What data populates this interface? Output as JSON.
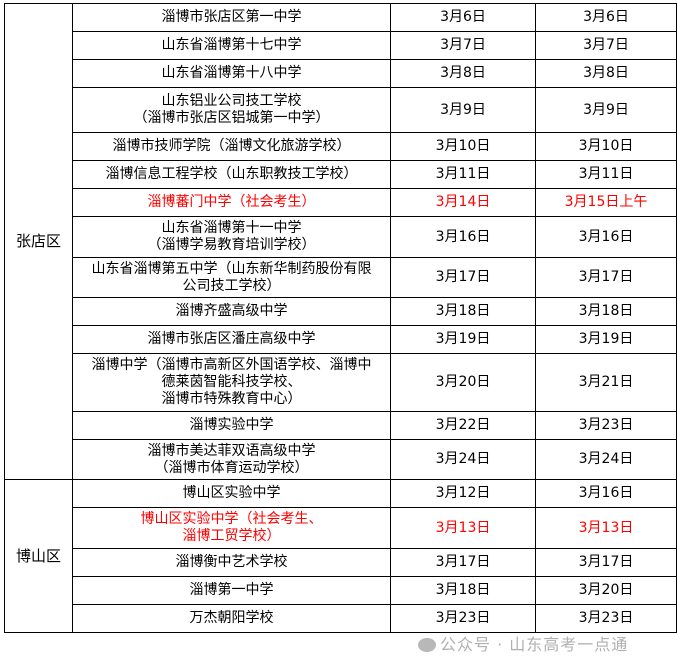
{
  "table": {
    "districts": [
      {
        "name": "张店区",
        "rows": [
          {
            "school": "淄博市张店区第一中学",
            "date1": "3月6日",
            "date2": "3月6日"
          },
          {
            "school": "山东省淄博第十七中学",
            "date1": "3月7日",
            "date2": "3月7日"
          },
          {
            "school": "山东省淄博第十八中学",
            "date1": "3月8日",
            "date2": "3月8日"
          },
          {
            "school": "山东铝业公司技工学校\n（淄博市张店区铝城第一中学）",
            "date1": "3月9日",
            "date2": "3月9日"
          },
          {
            "school": "淄博市技师学院（淄博文化旅游学校）",
            "date1": "3月10日",
            "date2": "3月10日"
          },
          {
            "school": "淄博信息工程学校（山东职教技工学校）",
            "date1": "3月11日",
            "date2": "3月11日"
          },
          {
            "school": "淄博蕃门中学（社会考生）",
            "date1": "3月14日",
            "date2": "3月15日上午",
            "highlight": true
          },
          {
            "school": "山东省淄博第十一中学\n（淄博学易教育培训学校）",
            "date1": "3月16日",
            "date2": "3月16日"
          },
          {
            "school": "山东省淄博第五中学（山东新华制药股份有限\n公司技工学校）",
            "date1": "3月17日",
            "date2": "3月17日"
          },
          {
            "school": "淄博齐盛高级中学",
            "date1": "3月18日",
            "date2": "3月18日"
          },
          {
            "school": "淄博市张店区潘庄高级中学",
            "date1": "3月19日",
            "date2": "3月19日"
          },
          {
            "school": "淄博中学（淄博市高新区外国语学校、淄博中\n德莱茵智能科技学校、\n淄博市特殊教育中心）",
            "date1": "3月20日",
            "date2": "3月21日"
          },
          {
            "school": "淄博实验中学",
            "date1": "3月22日",
            "date2": "3月23日"
          },
          {
            "school": "淄博市美达菲双语高级中学\n（淄博市体育运动学校）",
            "date1": "3月24日",
            "date2": "3月24日"
          }
        ]
      },
      {
        "name": "博山区",
        "rows": [
          {
            "school": "博山区实验中学",
            "date1": "3月12日",
            "date2": "3月16日"
          },
          {
            "school": "博山区实验中学（社会考生、\n淄博工贸学校）",
            "date1": "3月13日",
            "date2": "3月13日",
            "highlight": true
          },
          {
            "school": "淄博衡中艺术学校",
            "date1": "3月17日",
            "date2": "3月17日"
          },
          {
            "school": "淄博第一中学",
            "date1": "3月18日",
            "date2": "3月20日"
          },
          {
            "school": "万杰朝阳学校",
            "date1": "3月23日",
            "date2": "3月23日"
          }
        ]
      }
    ]
  },
  "watermark": "公众号 · 山东高考一点通",
  "colors": {
    "highlight": "#ff0000",
    "text": "#000000"
  }
}
